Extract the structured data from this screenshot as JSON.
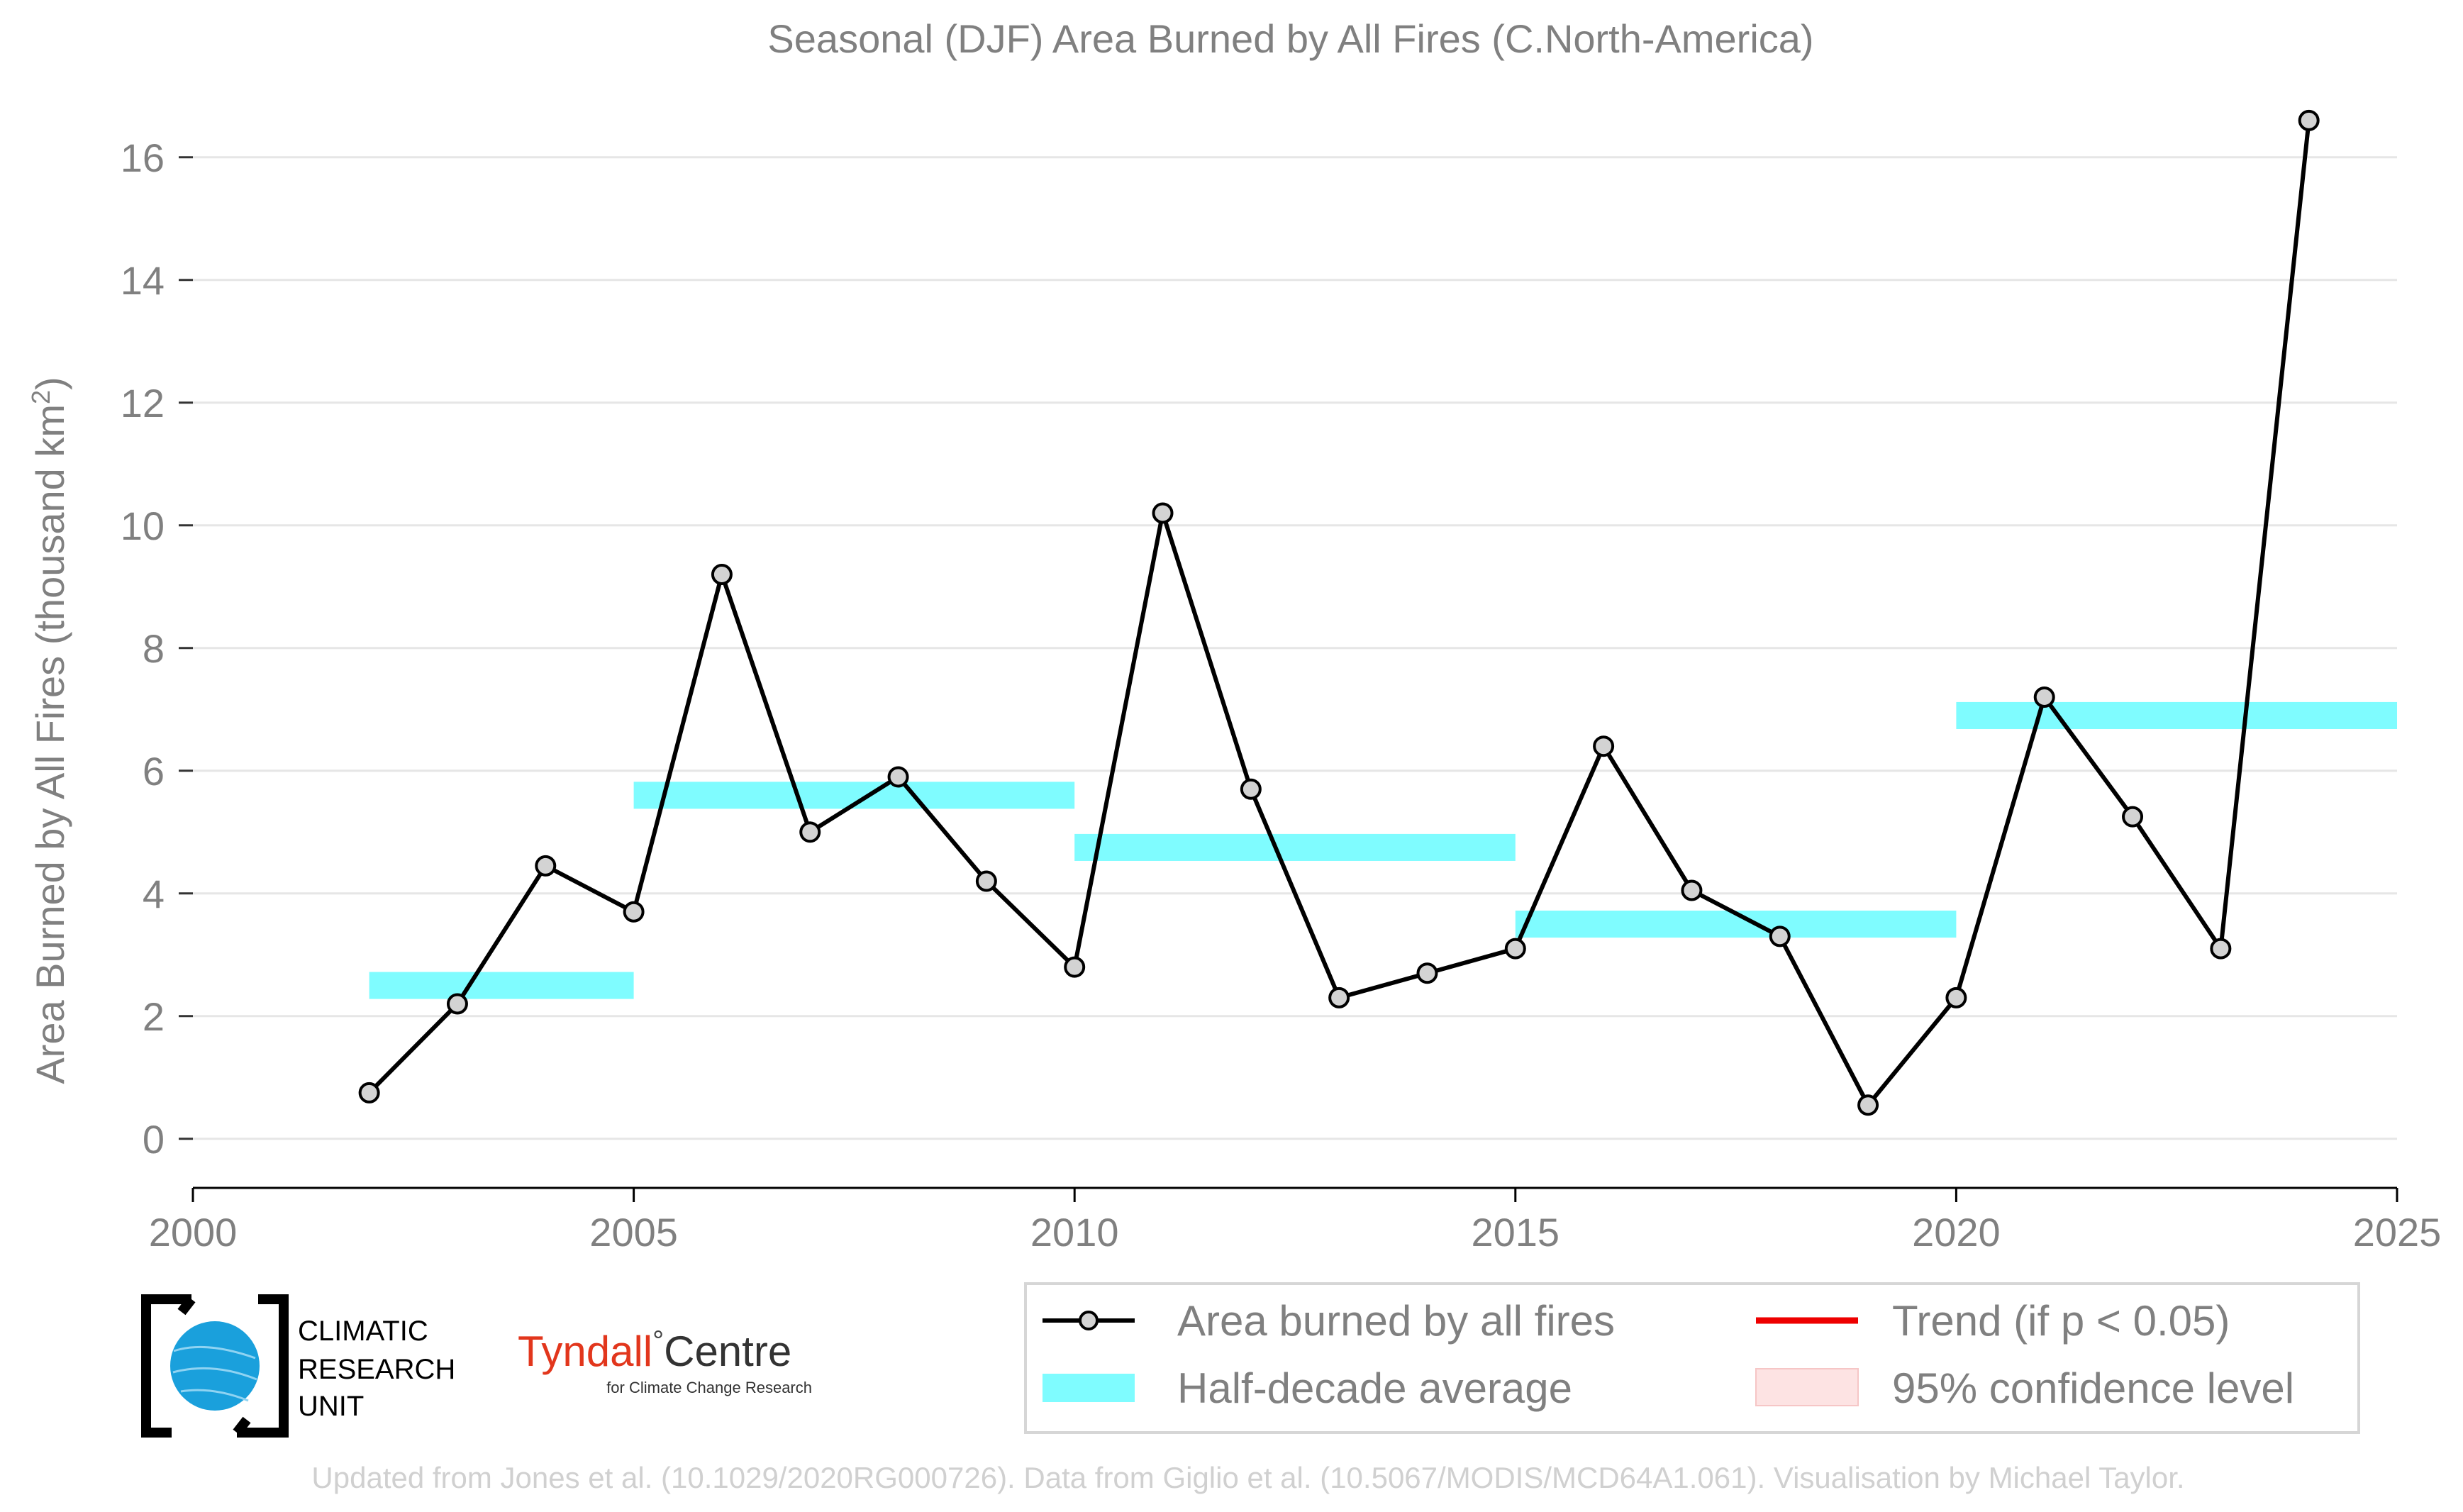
{
  "chart_data": {
    "type": "line",
    "title": "Seasonal (DJF) Area Burned by All Fires (C.North-America)",
    "ylabel_main": "Area Burned by All Fires (thousand km",
    "ylabel_sup": "2",
    "ylabel_close": ")",
    "xlabel": "",
    "xlim": [
      2000,
      2025
    ],
    "ylim": [
      -0.8,
      17.2
    ],
    "xticks": [
      2000,
      2005,
      2010,
      2015,
      2020,
      2025
    ],
    "yticks": [
      0,
      2,
      4,
      6,
      8,
      10,
      12,
      14,
      16
    ],
    "grid": true,
    "series": [
      {
        "name": "Area burned by all fires",
        "color": "#000000",
        "marker_fill": "#d3d3d3",
        "x": [
          2002,
          2003,
          2004,
          2005,
          2006,
          2007,
          2008,
          2009,
          2010,
          2011,
          2012,
          2013,
          2014,
          2015,
          2016,
          2017,
          2018,
          2019,
          2020,
          2021,
          2022,
          2023,
          2024
        ],
        "y": [
          0.75,
          2.2,
          4.45,
          3.7,
          9.2,
          5.0,
          5.9,
          4.2,
          2.8,
          10.2,
          5.7,
          2.3,
          2.7,
          3.1,
          6.4,
          4.05,
          3.3,
          0.55,
          2.3,
          7.2,
          5.25,
          3.1,
          16.6
        ]
      }
    ],
    "half_decade_average": {
      "name": "Half-decade average",
      "color": "#7ffcff",
      "segments": [
        {
          "x0": 2002,
          "x1": 2005,
          "y": 2.5
        },
        {
          "x0": 2005,
          "x1": 2010,
          "y": 5.6
        },
        {
          "x0": 2010,
          "x1": 2015,
          "y": 4.75
        },
        {
          "x0": 2015,
          "x1": 2020,
          "y": 3.5
        },
        {
          "x0": 2020,
          "x1": 2025,
          "y": 6.9
        }
      ]
    },
    "legend": {
      "placement": "bottom-right",
      "entries": [
        {
          "label": "Area burned by all fires",
          "kind": "line-marker",
          "color": "#000000"
        },
        {
          "label": "Trend (if p < 0.05)",
          "kind": "line",
          "color": "#ee0000"
        },
        {
          "label": "Half-decade average",
          "kind": "band",
          "color": "#7ffcff"
        },
        {
          "label": "95% confidence level",
          "kind": "patch",
          "color": "#fde3e3"
        }
      ]
    }
  },
  "logos": {
    "cru_line1": "CLIMATIC",
    "cru_line2": "RESEARCH",
    "cru_line3": "UNIT",
    "tyndall_main": "Tyndall",
    "tyndall_degree": "°",
    "tyndall_centre": "Centre",
    "tyndall_sub": "for Climate Change Research"
  },
  "footer": "Updated from Jones et al. (10.1029/2020RG000726). Data from Giglio et al. (10.5067/MODIS/MCD64A1.061). Visualisation by Michael Taylor."
}
